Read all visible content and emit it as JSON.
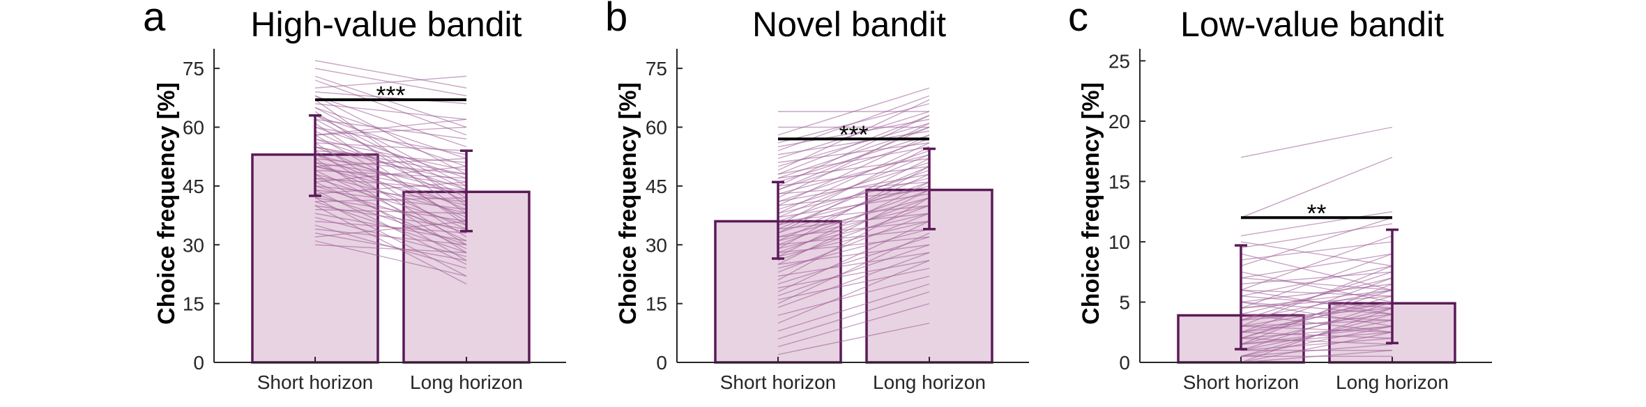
{
  "colors": {
    "bar_fill": "#e8d3e2",
    "bar_edge": "#5b1a57",
    "individual_line": "#9b5a93",
    "errorbar": "#5b1a57",
    "sig_line": "#000000",
    "axis": "#262626"
  },
  "chart_data": [
    {
      "type": "bar",
      "panel_letter": "a",
      "title": "High-value bandit",
      "ylabel": "Choice frequency [%]",
      "xlabel": "",
      "categories": [
        "Short horizon",
        "Long horizon"
      ],
      "values": [
        53,
        43.5
      ],
      "error_low": [
        42.5,
        33.5
      ],
      "error_high": [
        63,
        54
      ],
      "ylim": [
        0,
        80
      ],
      "yticks": [
        "0",
        "15",
        "30",
        "45",
        "60",
        "75"
      ],
      "significance": {
        "label": "***",
        "y": 67
      },
      "individual_lines": [
        [
          77,
          70
        ],
        [
          75,
          68
        ],
        [
          73,
          60
        ],
        [
          72,
          58
        ],
        [
          70,
          73
        ],
        [
          69,
          66
        ],
        [
          68,
          55
        ],
        [
          68,
          48
        ],
        [
          67,
          40
        ],
        [
          66,
          62
        ],
        [
          65,
          52
        ],
        [
          65,
          45
        ],
        [
          64,
          38
        ],
        [
          63,
          50
        ],
        [
          62,
          57
        ],
        [
          62,
          42
        ],
        [
          61,
          35
        ],
        [
          60,
          53
        ],
        [
          60,
          47
        ],
        [
          59,
          41
        ],
        [
          58,
          60
        ],
        [
          58,
          36
        ],
        [
          57,
          49
        ],
        [
          57,
          44
        ],
        [
          56,
          32
        ],
        [
          56,
          54
        ],
        [
          55,
          39
        ],
        [
          55,
          46
        ],
        [
          54,
          30
        ],
        [
          54,
          51
        ],
        [
          53,
          43
        ],
        [
          53,
          37
        ],
        [
          52,
          48
        ],
        [
          52,
          28
        ],
        [
          51,
          45
        ],
        [
          51,
          34
        ],
        [
          50,
          52
        ],
        [
          50,
          40
        ],
        [
          49,
          31
        ],
        [
          49,
          47
        ],
        [
          48,
          38
        ],
        [
          48,
          26
        ],
        [
          47,
          44
        ],
        [
          47,
          35
        ],
        [
          46,
          50
        ],
        [
          46,
          29
        ],
        [
          45,
          41
        ],
        [
          45,
          33
        ],
        [
          44,
          25
        ],
        [
          44,
          39
        ],
        [
          43,
          46
        ],
        [
          43,
          30
        ],
        [
          42,
          36
        ],
        [
          42,
          22
        ],
        [
          41,
          42
        ],
        [
          41,
          28
        ],
        [
          40,
          34
        ],
        [
          40,
          20
        ],
        [
          39,
          38
        ],
        [
          38,
          31
        ],
        [
          37,
          27
        ],
        [
          36,
          33
        ],
        [
          35,
          24
        ],
        [
          34,
          30
        ],
        [
          33,
          26
        ],
        [
          32,
          36
        ],
        [
          31,
          22
        ],
        [
          30,
          28
        ],
        [
          58,
          62
        ],
        [
          63,
          44
        ],
        [
          55,
          48
        ],
        [
          50,
          43
        ]
      ]
    },
    {
      "type": "bar",
      "panel_letter": "b",
      "title": "Novel bandit",
      "ylabel": "Choice frequency [%]",
      "xlabel": "",
      "categories": [
        "Short horizon",
        "Long horizon"
      ],
      "values": [
        36,
        44
      ],
      "error_low": [
        26.5,
        34
      ],
      "error_high": [
        46,
        54.5
      ],
      "ylim": [
        0,
        80
      ],
      "yticks": [
        "0",
        "15",
        "30",
        "45",
        "60",
        "75"
      ],
      "significance": {
        "label": "***",
        "y": 57
      },
      "individual_lines": [
        [
          58,
          70
        ],
        [
          56,
          66
        ],
        [
          55,
          62
        ],
        [
          54,
          68
        ],
        [
          53,
          59
        ],
        [
          52,
          64
        ],
        [
          51,
          56
        ],
        [
          50,
          61
        ],
        [
          49,
          67
        ],
        [
          48,
          55
        ],
        [
          47,
          60
        ],
        [
          47,
          52
        ],
        [
          46,
          58
        ],
        [
          45,
          63
        ],
        [
          45,
          50
        ],
        [
          44,
          57
        ],
        [
          43,
          53
        ],
        [
          43,
          46
        ],
        [
          42,
          61
        ],
        [
          41,
          54
        ],
        [
          41,
          48
        ],
        [
          40,
          58
        ],
        [
          40,
          44
        ],
        [
          39,
          51
        ],
        [
          38,
          56
        ],
        [
          38,
          47
        ],
        [
          37,
          43
        ],
        [
          37,
          53
        ],
        [
          36,
          49
        ],
        [
          36,
          40
        ],
        [
          35,
          55
        ],
        [
          35,
          45
        ],
        [
          34,
          50
        ],
        [
          34,
          38
        ],
        [
          33,
          46
        ],
        [
          33,
          52
        ],
        [
          32,
          42
        ],
        [
          32,
          36
        ],
        [
          31,
          48
        ],
        [
          31,
          40
        ],
        [
          30,
          44
        ],
        [
          30,
          34
        ],
        [
          29,
          50
        ],
        [
          29,
          38
        ],
        [
          28,
          42
        ],
        [
          28,
          32
        ],
        [
          27,
          46
        ],
        [
          27,
          36
        ],
        [
          26,
          40
        ],
        [
          25,
          30
        ],
        [
          25,
          44
        ],
        [
          24,
          34
        ],
        [
          23,
          38
        ],
        [
          22,
          28
        ],
        [
          21,
          42
        ],
        [
          20,
          32
        ],
        [
          19,
          26
        ],
        [
          18,
          36
        ],
        [
          17,
          30
        ],
        [
          16,
          24
        ],
        [
          15,
          33
        ],
        [
          14,
          28
        ],
        [
          12,
          22
        ],
        [
          10,
          26
        ],
        [
          8,
          20
        ],
        [
          6,
          18
        ],
        [
          4,
          15
        ],
        [
          2,
          10
        ],
        [
          64,
          64
        ],
        [
          60,
          60
        ],
        [
          48,
          63
        ],
        [
          44,
          60
        ]
      ]
    },
    {
      "type": "bar",
      "panel_letter": "c",
      "title": "Low-value bandit",
      "ylabel": "Choice frequency [%]",
      "xlabel": "",
      "categories": [
        "Short horizon",
        "Long horizon"
      ],
      "values": [
        3.9,
        4.9
      ],
      "error_low": [
        1.1,
        1.6
      ],
      "error_high": [
        9.7,
        11
      ],
      "ylim": [
        0,
        26
      ],
      "yticks": [
        "0",
        "5",
        "10",
        "15",
        "20",
        "25"
      ],
      "significance": {
        "label": "**",
        "y": 12
      },
      "individual_lines": [
        [
          17,
          19.5
        ],
        [
          12,
          17
        ],
        [
          10.5,
          12.5
        ],
        [
          10,
          8
        ],
        [
          9.5,
          11.5
        ],
        [
          9,
          6
        ],
        [
          8.5,
          10
        ],
        [
          8,
          12
        ],
        [
          7.5,
          5
        ],
        [
          7,
          9
        ],
        [
          6.5,
          7.5
        ],
        [
          6,
          10.5
        ],
        [
          6,
          4
        ],
        [
          5.5,
          8
        ],
        [
          5,
          6.5
        ],
        [
          5,
          3
        ],
        [
          4.5,
          9
        ],
        [
          4.5,
          5.5
        ],
        [
          4,
          7
        ],
        [
          4,
          2.5
        ],
        [
          3.5,
          6
        ],
        [
          3.5,
          4.5
        ],
        [
          3,
          8
        ],
        [
          3,
          3.5
        ],
        [
          3,
          5
        ],
        [
          2.5,
          7
        ],
        [
          2.5,
          2
        ],
        [
          2.5,
          4
        ],
        [
          2,
          6
        ],
        [
          2,
          3
        ],
        [
          2,
          5.5
        ],
        [
          1.5,
          4.5
        ],
        [
          1.5,
          2.5
        ],
        [
          1.5,
          6.5
        ],
        [
          1,
          3.5
        ],
        [
          1,
          5
        ],
        [
          1,
          2
        ],
        [
          0.5,
          4
        ],
        [
          0.5,
          3
        ],
        [
          0.5,
          1.5
        ],
        [
          0,
          2.5
        ],
        [
          0,
          4.5
        ],
        [
          0,
          1
        ],
        [
          3,
          2.5
        ],
        [
          4,
          3.5
        ],
        [
          5,
          4
        ],
        [
          6,
          5.5
        ],
        [
          7,
          6
        ],
        [
          2,
          1.5
        ],
        [
          1,
          1
        ],
        [
          3.5,
          7.5
        ],
        [
          4.5,
          6
        ],
        [
          5.5,
          4.5
        ],
        [
          0.5,
          0.5
        ],
        [
          2.5,
          5
        ],
        [
          1.5,
          3
        ]
      ]
    }
  ]
}
